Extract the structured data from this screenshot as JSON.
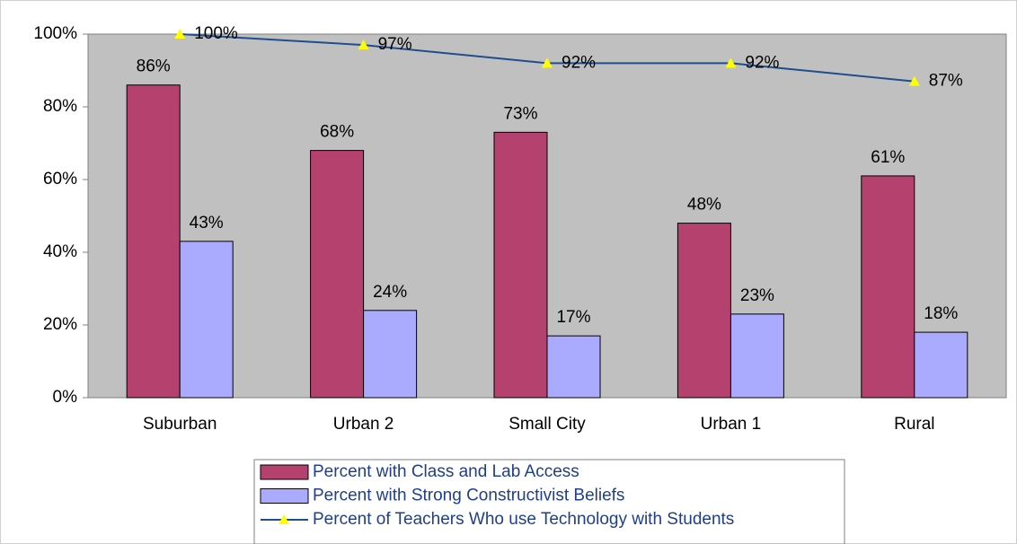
{
  "chart_data": {
    "type": "bar",
    "categories": [
      "Suburban",
      "Urban 2",
      "Small City",
      "Urban 1",
      "Rural"
    ],
    "series": [
      {
        "name": "Percent with Class and Lab Access",
        "type": "bar",
        "color": "#b5416f",
        "values": [
          86,
          68,
          73,
          48,
          61
        ],
        "value_labels": [
          "86%",
          "68%",
          "73%",
          "48%",
          "61%"
        ]
      },
      {
        "name": "Percent with Strong Constructivist Beliefs",
        "type": "bar",
        "color": "#aaaaff",
        "values": [
          43,
          24,
          17,
          23,
          18
        ],
        "value_labels": [
          "43%",
          "24%",
          "17%",
          "23%",
          "18%"
        ]
      },
      {
        "name": "Percent of Teachers Who use Technology with Students",
        "type": "line",
        "color": "#1f4e8c",
        "marker_color": "#ffff00",
        "values": [
          100,
          97,
          92,
          92,
          87
        ],
        "value_labels": [
          "100%",
          "97%",
          "92%",
          "92%",
          "87%"
        ]
      }
    ],
    "ylim": [
      0,
      100
    ],
    "yticks": [
      {
        "value": 0,
        "label": "0%"
      },
      {
        "value": 20,
        "label": "20%"
      },
      {
        "value": 40,
        "label": "40%"
      },
      {
        "value": 60,
        "label": "60%"
      },
      {
        "value": 80,
        "label": "80%"
      },
      {
        "value": 100,
        "label": "100%"
      }
    ],
    "grid": false,
    "legend": "bottom"
  }
}
